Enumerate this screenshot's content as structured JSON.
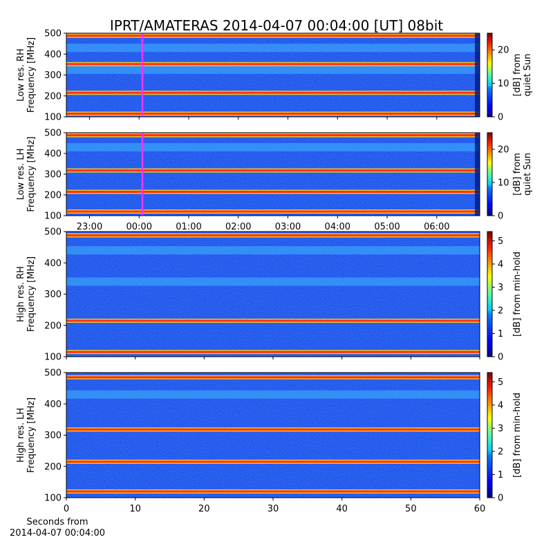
{
  "title": "IPRT/AMATERAS 2014-04-07 00:04:00 [UT]   08bit",
  "chart_data": [
    {
      "type": "heatmap",
      "ylabel": [
        "Low res. RH",
        "Frequency [MHz]"
      ],
      "yticks": [
        100,
        200,
        300,
        400,
        500
      ],
      "ylim": [
        100,
        500
      ],
      "xaxis": "UT time 22:32 to 06:52",
      "xticks": [],
      "colorbar": {
        "label": [
          "[dB] from",
          "quiet Sun"
        ],
        "ticks": [
          0,
          10,
          20
        ],
        "range": [
          0,
          25
        ]
      },
      "marker": {
        "color": "#ff33ff",
        "at_time": "00:04"
      },
      "bright_bands_mhz": [
        115,
        215,
        352,
        488
      ],
      "emission_bands_mhz": [
        325,
        430
      ]
    },
    {
      "type": "heatmap",
      "ylabel": [
        "Low res. LH",
        "Frequency [MHz]"
      ],
      "yticks": [
        100,
        200,
        300,
        400,
        500
      ],
      "ylim": [
        100,
        500
      ],
      "xaxis": "UT time 22:32 to 06:52",
      "xticks": [
        "23:00",
        "00:00",
        "01:00",
        "02:00",
        "03:00",
        "04:00",
        "05:00",
        "06:00"
      ],
      "colorbar": {
        "label": [
          "[dB] from",
          "quiet Sun"
        ],
        "ticks": [
          0,
          10,
          20
        ],
        "range": [
          0,
          25
        ]
      },
      "marker": {
        "color": "#ff33ff",
        "at_time": "00:04"
      },
      "bright_bands_mhz": [
        120,
        215,
        318,
        488
      ],
      "emission_bands_mhz": [
        430
      ]
    },
    {
      "type": "heatmap",
      "ylabel": [
        "High res. RH",
        "Frequency [MHz]"
      ],
      "yticks": [
        100,
        200,
        300,
        400,
        500
      ],
      "ylim": [
        100,
        500
      ],
      "xlim": [
        0,
        60
      ],
      "xticks": [],
      "colorbar": {
        "label": [
          "[dB] from min-hold"
        ],
        "ticks": [
          0,
          1,
          2,
          3,
          4,
          5
        ],
        "range": [
          0,
          5.4
        ]
      },
      "bright_bands_mhz": [
        115,
        215,
        488
      ],
      "emission_bands_mhz": [
        340,
        440
      ]
    },
    {
      "type": "heatmap",
      "ylabel": [
        "High res. LH",
        "Frequency [MHz]"
      ],
      "yticks": [
        100,
        200,
        300,
        400,
        500
      ],
      "ylim": [
        100,
        500
      ],
      "xlim": [
        0,
        60
      ],
      "xticks": [
        0,
        10,
        20,
        30,
        40,
        50,
        60
      ],
      "xcaption": [
        "Seconds from",
        "2014-04-07 00:04:00"
      ],
      "colorbar": {
        "label": [
          "[dB] from min-hold"
        ],
        "ticks": [
          0,
          1,
          2,
          3,
          4,
          5
        ],
        "range": [
          0,
          5.4
        ]
      },
      "bright_bands_mhz": [
        120,
        215,
        318,
        485
      ],
      "emission_bands_mhz": [
        430
      ]
    }
  ]
}
